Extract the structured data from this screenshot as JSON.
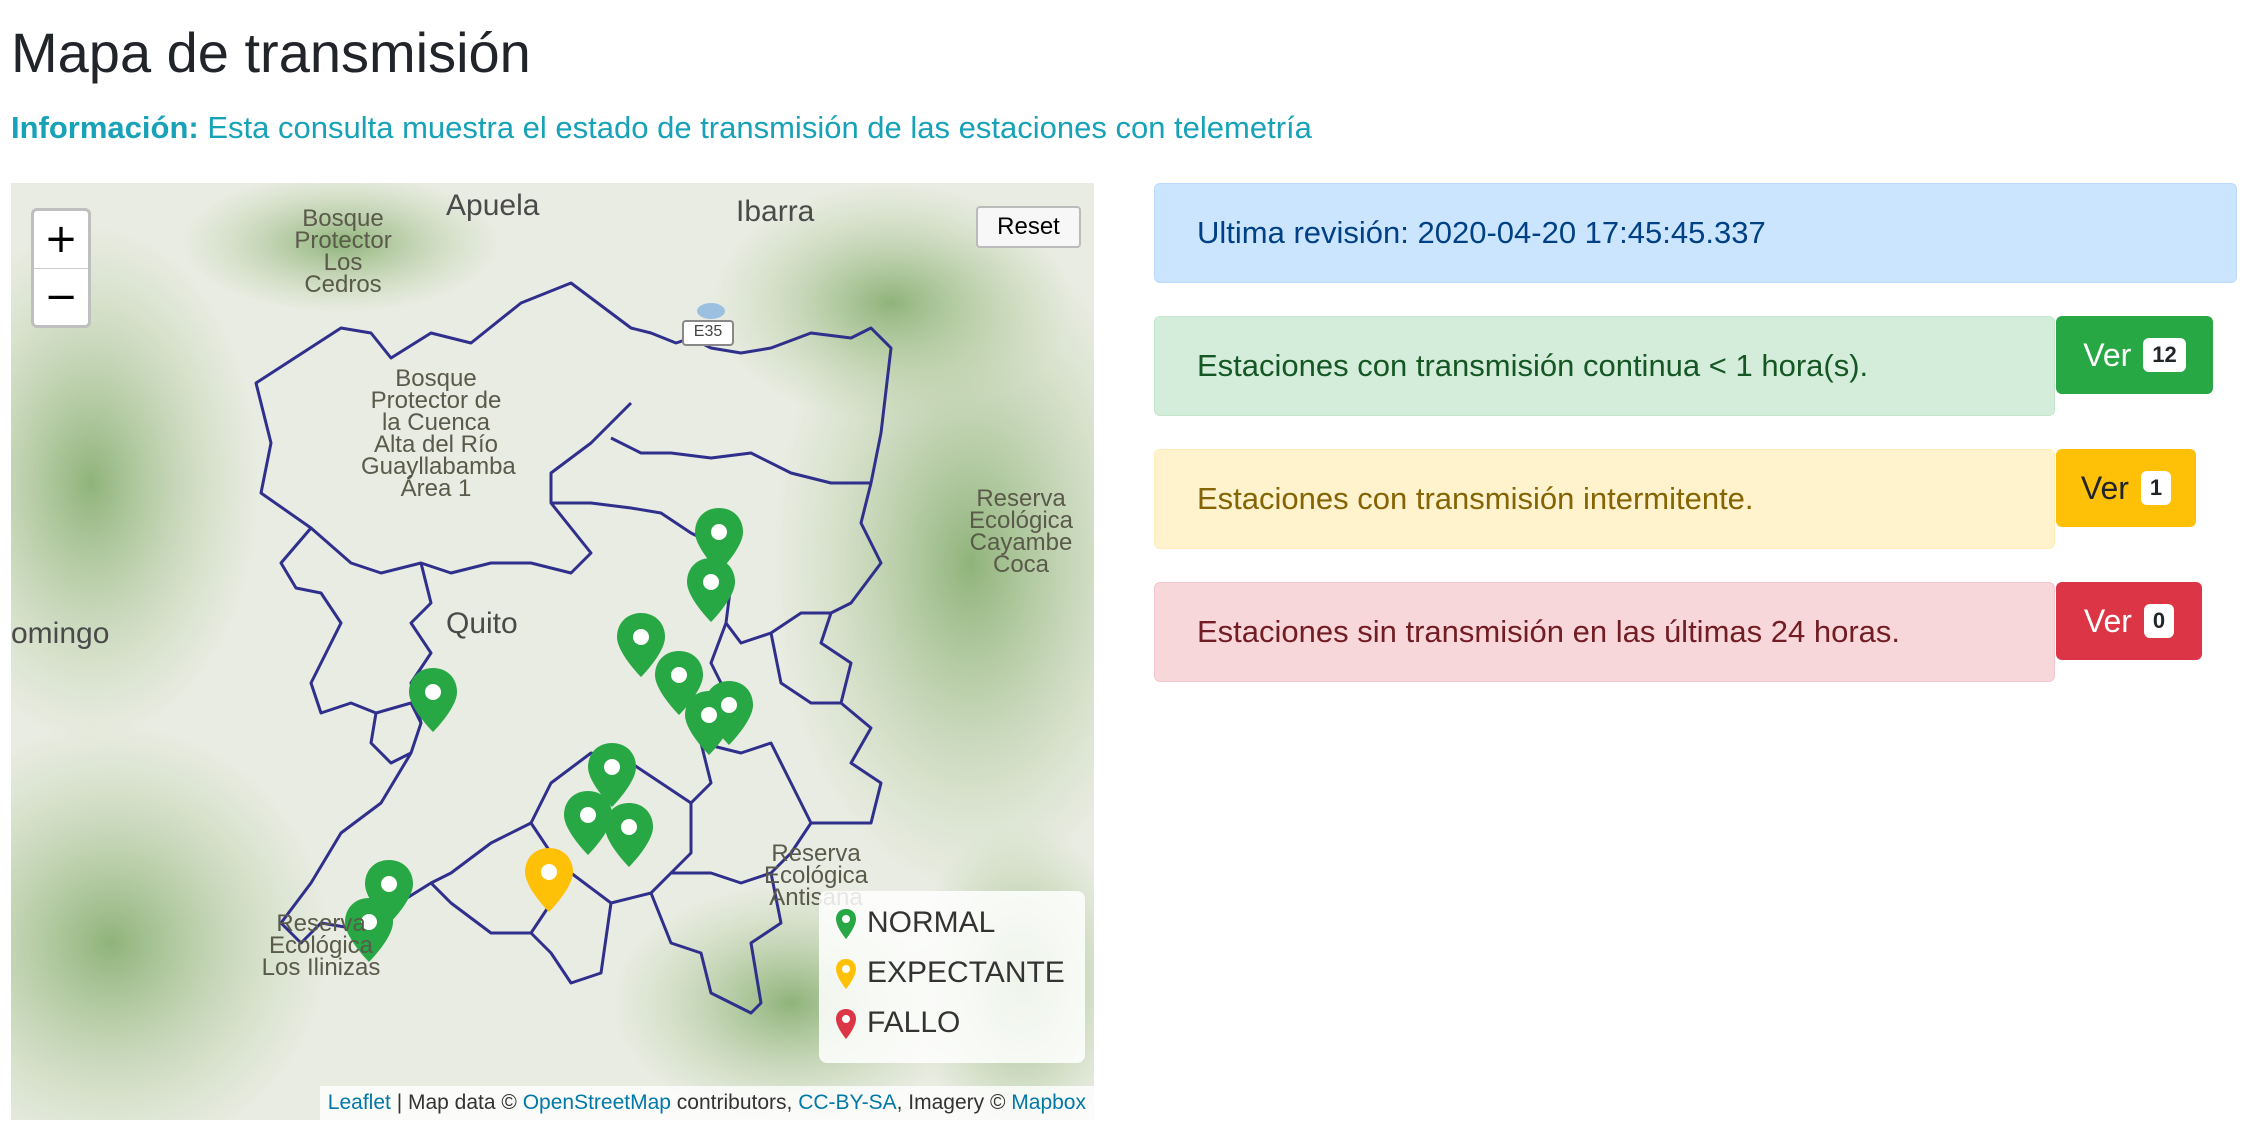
{
  "page": {
    "title": "Mapa de transmisión",
    "info_label": "Información:",
    "info_text": "Esta consulta muestra el estado de transmisión de las estaciones con telemetría"
  },
  "map": {
    "zoom_in": "+",
    "zoom_out": "−",
    "reset_label": "Reset",
    "place_labels": {
      "apuela": "Apuela",
      "ibarra": "Ibarra",
      "quito": "Quito",
      "domingo": "omingo",
      "road": "E35",
      "bosque_los_cedros": "Bosque Protector Los Cedros",
      "bosque_guayllabamba": "Bosque Protector de la Cuenca Alta del Río Guayllabamba Área 1",
      "reserva_cayambe": "Reserva Ecológica Cayambe Coca",
      "reserva_antisana": "Reserva Ecológica Antisana",
      "reserva_ilinizas": "Reserva Ecológica Los Ilinizas"
    },
    "legend": [
      {
        "label": "NORMAL",
        "color": "#28a745"
      },
      {
        "label": "EXPECTANTE",
        "color": "#ffc107"
      },
      {
        "label": "FALLO",
        "color": "#dc3545"
      }
    ],
    "attribution": {
      "leaflet": "Leaflet",
      "sep1": " | Map data © ",
      "osm": "OpenStreetMap",
      "contributors": " contributors, ",
      "license": "CC-BY-SA",
      "imagery": ", Imagery © ",
      "mapbox": "Mapbox"
    },
    "station_counts": {
      "normal": 12,
      "expectante": 1,
      "fallo": 0
    }
  },
  "status": {
    "last_revision": "Ultima revisión: 2020-04-20 17:45:45.337",
    "continuous": {
      "text": "Estaciones con transmisión continua < 1 hora(s).",
      "button": "Ver",
      "count": "12"
    },
    "intermittent": {
      "text": "Estaciones con transmisión intermitente.",
      "button": "Ver",
      "count": "1"
    },
    "none": {
      "text": "Estaciones sin transmisión en las últimas 24 horas.",
      "button": "Ver",
      "count": "0"
    }
  }
}
